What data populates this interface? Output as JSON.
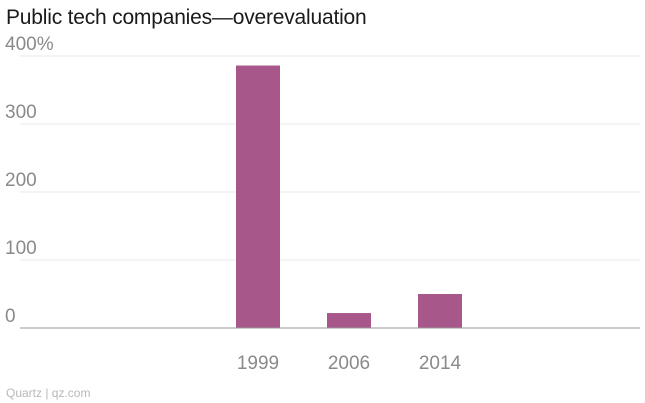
{
  "title": "Public tech companies—overevaluation",
  "source": "Quartz | qz.com",
  "colors": {
    "bar": "#a8578a",
    "grid": "#e9e9e9",
    "baseline": "#9a9a9a",
    "tick_text": "#8a8a8a"
  },
  "chart_data": {
    "type": "bar",
    "title": "Public tech companies—overevaluation",
    "categories": [
      "1999",
      "2006",
      "2014"
    ],
    "values": [
      386,
      22,
      50
    ],
    "y_ticks": [
      0,
      100,
      200,
      300,
      400
    ],
    "y_tick_labels": [
      "0",
      "100",
      "200",
      "300",
      "400%"
    ],
    "ylim": [
      0,
      400
    ],
    "xlabel": "",
    "ylabel": "",
    "grid": true,
    "legend": "none"
  }
}
